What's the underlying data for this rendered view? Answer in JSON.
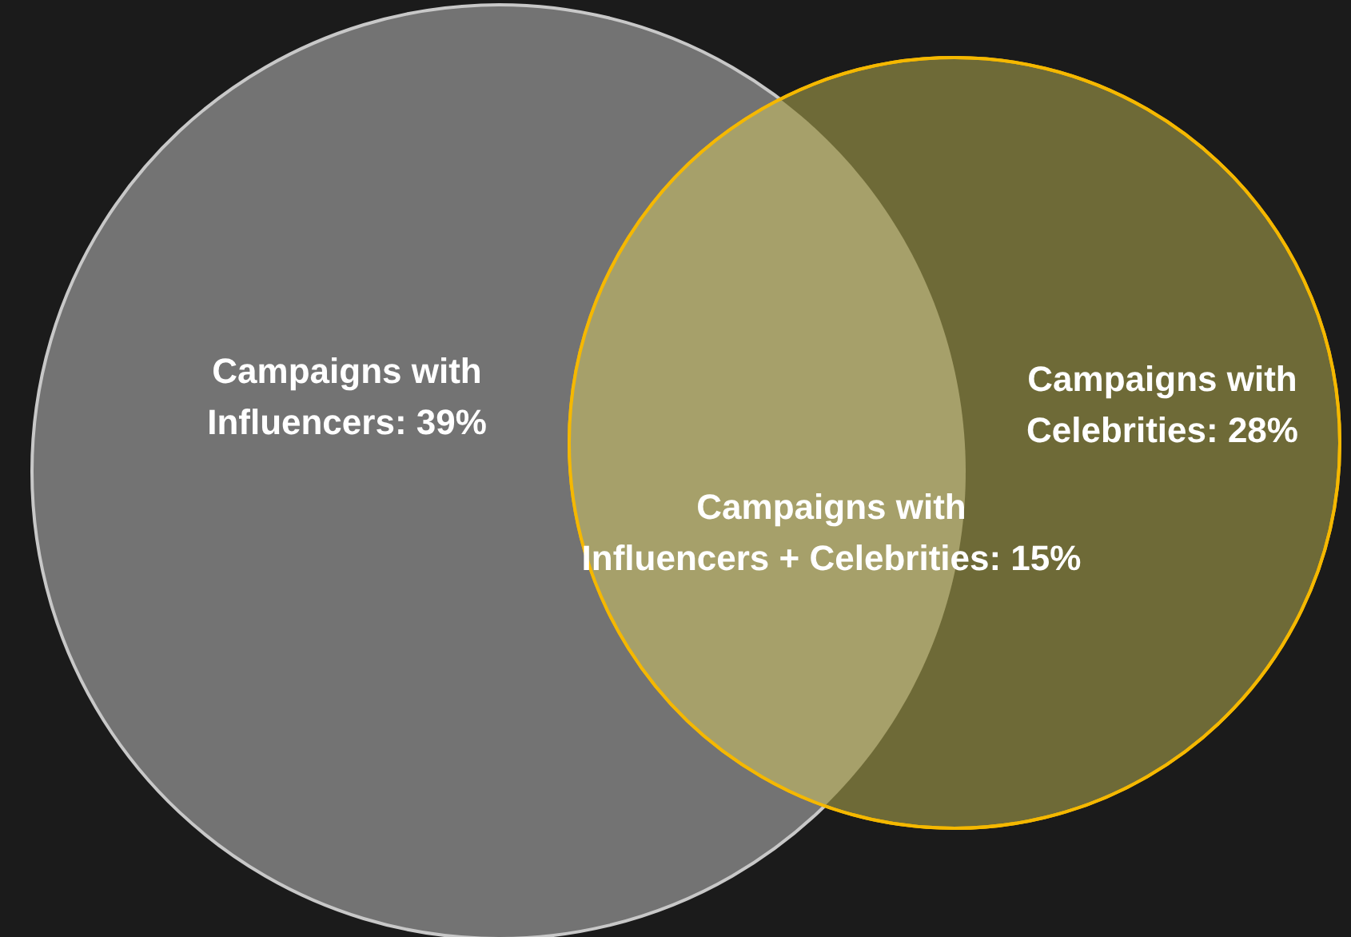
{
  "chart_data": {
    "type": "other",
    "categories": [
      "Campaigns with Influencers",
      "Campaigns with Celebrities",
      "Campaigns with Influencers + Celebrities"
    ],
    "values": [
      39,
      28,
      15
    ],
    "value_labels": [
      ": 39%",
      ": 28%",
      ": 15%"
    ],
    "colors": [
      "#737373",
      "#6e6a37",
      "#a6a06a"
    ]
  }
}
